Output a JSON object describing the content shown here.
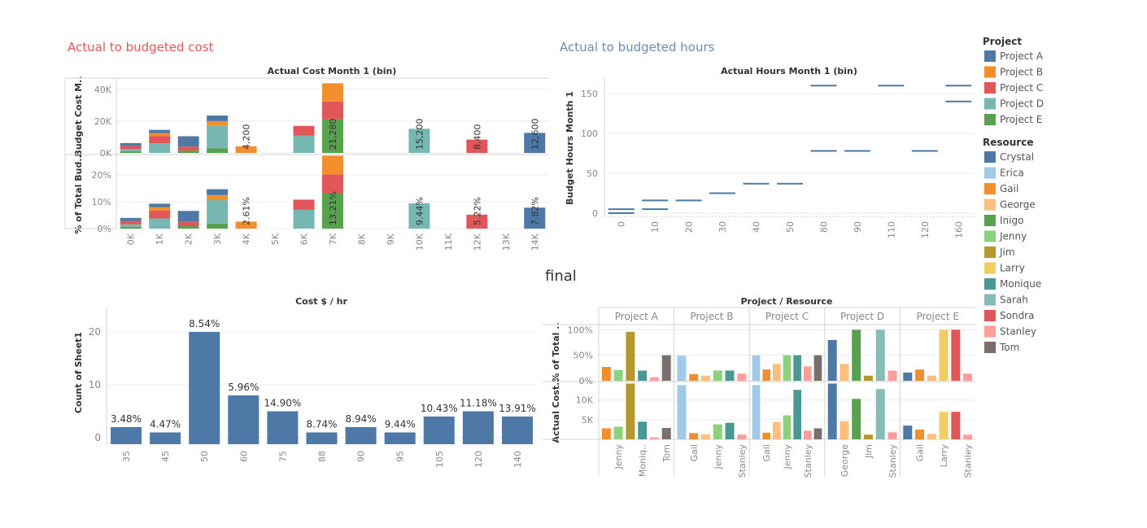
{
  "dashboard": {
    "sections": {
      "cost_title": "Actual to budgeted cost",
      "hours_title": "Actual to budgeted hours",
      "final_title": "final"
    },
    "colors": {
      "section_cost": "#e05a57",
      "section_hours": "#6b8cb3",
      "project": {
        "Project A": "#4e79a7",
        "Project B": "#f28e2b",
        "Project C": "#e15759",
        "Project D": "#76b7b2",
        "Project E": "#59a14f"
      },
      "resource": {
        "Crystal": "#4e79a7",
        "Erica": "#a0cbe8",
        "Gail": "#f28e2b",
        "George": "#ffbe7d",
        "Inigo": "#59a14f",
        "Jenny": "#8cd17d",
        "Jim": "#b6992d",
        "Larry": "#f1ce63",
        "Monique": "#499894",
        "Sarah": "#86bcb6",
        "Sondra": "#e15759",
        "Stanley": "#ff9d9a",
        "Tom": "#79706e"
      }
    },
    "legend": {
      "project_title": "Project",
      "projects": [
        "Project A",
        "Project B",
        "Project C",
        "Project D",
        "Project E"
      ],
      "resource_title": "Resource",
      "resources": [
        "Crystal",
        "Erica",
        "Gail",
        "George",
        "Inigo",
        "Jenny",
        "Jim",
        "Larry",
        "Monique",
        "Sarah",
        "Sondra",
        "Stanley",
        "Tom"
      ]
    }
  },
  "chart_data": [
    {
      "id": "cost",
      "type": "bar",
      "title": "Actual Cost Month 1 (bin)",
      "categories": [
        "0K",
        "1K",
        "2K",
        "3K",
        "4K",
        "5K",
        "6K",
        "7K",
        "8K",
        "9K",
        "10K",
        "11K",
        "12K",
        "13K",
        "14K"
      ],
      "panes": [
        {
          "ylabel": "Budget Cost M..",
          "ylim": [
            0,
            45000
          ],
          "ticks": [
            {
              "v": 0,
              "label": "0K"
            },
            {
              "v": 20000,
              "label": "20K"
            },
            {
              "v": 40000,
              "label": "40K"
            }
          ],
          "stacks": [
            [
              [
                "Project E",
                1000
              ],
              [
                "Project D",
                1400
              ],
              [
                "Project C",
                2000
              ],
              [
                "Project A",
                1800
              ]
            ],
            [
              [
                "Project D",
                6000
              ],
              [
                "Project C",
                4500
              ],
              [
                "Project B",
                2000
              ],
              [
                "Project A",
                2000
              ]
            ],
            [
              [
                "Project E",
                1500
              ],
              [
                "Project C",
                2500
              ],
              [
                "Project A",
                6500
              ]
            ],
            [
              [
                "Project E",
                3000
              ],
              [
                "Project D",
                14000
              ],
              [
                "Project B",
                3000
              ],
              [
                "Project A",
                3500
              ]
            ],
            [
              [
                "Project B",
                4200
              ]
            ],
            [],
            [
              [
                "Project D",
                11000
              ],
              [
                "Project C",
                6000
              ]
            ],
            [
              [
                "Project E",
                21280
              ],
              [
                "Project C",
                11000
              ],
              [
                "Project B",
                11500
              ]
            ],
            [],
            [],
            [
              [
                "Project D",
                15200
              ]
            ],
            [],
            [
              [
                "Project C",
                8400
              ]
            ],
            [],
            [
              [
                "Project A",
                12600
              ]
            ]
          ],
          "labels": {
            "4": "4,200",
            "7": "21,280",
            "10": "15,200",
            "12": "8,400",
            "14": "12,600"
          }
        },
        {
          "ylabel": "% of Total Bud..",
          "ylim": [
            0,
            0.27
          ],
          "ticks": [
            {
              "v": 0,
              "label": "0%"
            },
            {
              "v": 0.1,
              "label": "10%"
            },
            {
              "v": 0.2,
              "label": "20%"
            }
          ],
          "stacks": [
            [
              [
                "Project E",
                0.007
              ],
              [
                "Project D",
                0.009
              ],
              [
                "Project C",
                0.013
              ],
              [
                "Project A",
                0.011
              ]
            ],
            [
              [
                "Project D",
                0.038
              ],
              [
                "Project C",
                0.029
              ],
              [
                "Project B",
                0.013
              ],
              [
                "Project A",
                0.013
              ]
            ],
            [
              [
                "Project E",
                0.009
              ],
              [
                "Project C",
                0.016
              ],
              [
                "Project A",
                0.041
              ]
            ],
            [
              [
                "Project E",
                0.019
              ],
              [
                "Project D",
                0.087
              ],
              [
                "Project B",
                0.019
              ],
              [
                "Project A",
                0.022
              ]
            ],
            [
              [
                "Project B",
                0.0261
              ]
            ],
            [],
            [
              [
                "Project D",
                0.07
              ],
              [
                "Project C",
                0.038
              ]
            ],
            [
              [
                "Project E",
                0.1321
              ],
              [
                "Project C",
                0.07
              ],
              [
                "Project B",
                0.07
              ]
            ],
            [],
            [],
            [
              [
                "Project D",
                0.0944
              ]
            ],
            [],
            [
              [
                "Project C",
                0.0522
              ]
            ],
            [],
            [
              [
                "Project A",
                0.0782
              ]
            ]
          ],
          "labels": {
            "4": "2.61%",
            "7": "13.21%",
            "10": "9.44%",
            "12": "5.22%",
            "14": "7.82%"
          }
        }
      ]
    },
    {
      "id": "hours",
      "type": "scatter",
      "title": "Actual Hours Month 1 (bin)",
      "ylabel": "Budget Hours Month 1",
      "categories": [
        "0",
        "10",
        "20",
        "30",
        "40",
        "50",
        "80",
        "90",
        "110",
        "120",
        "160"
      ],
      "ylim": [
        0,
        165
      ],
      "yticks": [
        0,
        50,
        100,
        150
      ],
      "points": [
        {
          "x": "0",
          "y": 0
        },
        {
          "x": "0",
          "y": 5
        },
        {
          "x": "10",
          "y": 5
        },
        {
          "x": "10",
          "y": 16
        },
        {
          "x": "20",
          "y": 16
        },
        {
          "x": "30",
          "y": 25
        },
        {
          "x": "40",
          "y": 37
        },
        {
          "x": "50",
          "y": 37
        },
        {
          "x": "80",
          "y": 78
        },
        {
          "x": "80",
          "y": 160
        },
        {
          "x": "90",
          "y": 78
        },
        {
          "x": "110",
          "y": 160
        },
        {
          "x": "120",
          "y": 78
        },
        {
          "x": "160",
          "y": 140
        },
        {
          "x": "160",
          "y": 160
        }
      ]
    },
    {
      "id": "costhr",
      "type": "bar",
      "title": "Cost $ / hr",
      "ylabel": "Count of Sheet1",
      "categories": [
        "35",
        "45",
        "50",
        "60",
        "75",
        "88",
        "90",
        "95",
        "105",
        "120",
        "140"
      ],
      "values": [
        2,
        1,
        20,
        8,
        5,
        1,
        2,
        1,
        4,
        5,
        4
      ],
      "labels": [
        "3.48%",
        "4.47%",
        "8.54%",
        "5.96%",
        "14.90%",
        "8.74%",
        "8.94%",
        "9.44%",
        "10.43%",
        "11.18%",
        "13.91%"
      ],
      "ylim": [
        0,
        22
      ],
      "yticks": [
        0,
        10,
        20
      ],
      "color": "#4e79a7"
    },
    {
      "id": "projres",
      "type": "bar",
      "title": "Project / Resource",
      "groups": [
        {
          "name": "Project A",
          "resources": [
            "Gail",
            "Jenny",
            "Jim",
            "Monique",
            "Stanley",
            "Tom"
          ],
          "ticks": [
            "Jenny",
            "Moniq..",
            "Tom"
          ],
          "tick_idx": [
            1,
            3,
            5
          ],
          "pct": [
            0.27,
            0.21,
            0.96,
            0.2,
            0.07,
            0.5
          ],
          "cost": [
            2800,
            3200,
            14200,
            4500,
            500,
            2900
          ]
        },
        {
          "name": "Project B",
          "resources": [
            "Erica",
            "Gail",
            "George",
            "Jenny",
            "Monique",
            "Stanley"
          ],
          "ticks": [
            "Gail",
            "Jenny",
            "Stanley"
          ],
          "tick_idx": [
            1,
            3,
            5
          ],
          "pct": [
            0.49,
            0.13,
            0.1,
            0.2,
            0.2,
            0.14
          ],
          "cost": [
            13800,
            1600,
            1300,
            3800,
            4200,
            1200
          ]
        },
        {
          "name": "Project C",
          "resources": [
            "Erica",
            "Gail",
            "George",
            "Jenny",
            "Monique",
            "Stanley",
            "Tom"
          ],
          "ticks": [
            "Gail",
            "Jenny",
            "Stanley"
          ],
          "tick_idx": [
            1,
            3,
            5
          ],
          "pct": [
            0.5,
            0.22,
            0.33,
            0.5,
            0.5,
            0.28,
            0.5
          ],
          "cost": [
            13800,
            1700,
            4400,
            6100,
            12600,
            2200,
            2800
          ]
        },
        {
          "name": "Project D",
          "resources": [
            "Crystal",
            "George",
            "Inigo",
            "Jim",
            "Sarah",
            "Stanley"
          ],
          "ticks": [
            "George",
            "Jim",
            "Stanley"
          ],
          "tick_idx": [
            1,
            3,
            5
          ],
          "pct": [
            0.8,
            0.33,
            1.0,
            0.1,
            1.0,
            0.2
          ],
          "cost": [
            14200,
            4600,
            10300,
            1200,
            12800,
            1800
          ]
        },
        {
          "name": "Project E",
          "resources": [
            "Crystal",
            "Gail",
            "George",
            "Larry",
            "Sondra",
            "Stanley"
          ],
          "ticks": [
            "Gail",
            "Larry",
            "Stanley"
          ],
          "tick_idx": [
            1,
            3,
            5
          ],
          "pct": [
            0.16,
            0.22,
            0.1,
            1.0,
            1.0,
            0.14
          ],
          "cost": [
            3500,
            2500,
            1400,
            7000,
            7000,
            1200
          ]
        }
      ],
      "panes": [
        {
          "ylabel": "% of Total ..",
          "ylim": [
            0,
            1.1
          ],
          "ticks": [
            {
              "v": 0,
              "label": "0%"
            },
            {
              "v": 0.5,
              "label": "50%"
            },
            {
              "v": 1.0,
              "label": "100%"
            }
          ]
        },
        {
          "ylabel": "Actual Cost..",
          "ylim": [
            0,
            14500
          ],
          "ticks": [
            {
              "v": 5000,
              "label": "5K"
            },
            {
              "v": 10000,
              "label": "10K"
            }
          ]
        }
      ]
    }
  ]
}
